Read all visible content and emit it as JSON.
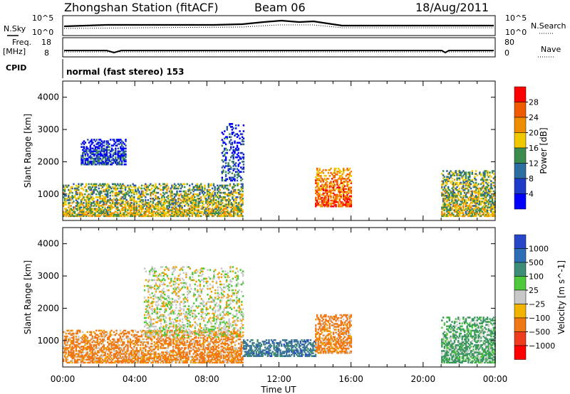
{
  "header": {
    "station": "Zhongshan Station (fitACF)",
    "beam": "Beam 06",
    "date": "18/Aug/2011"
  },
  "sky_panel": {
    "left_label": "N.Sky",
    "right_label": "N.Search",
    "left_ticks": [
      "10^5",
      "10^0"
    ],
    "right_ticks": [
      "10^5",
      "10^0"
    ]
  },
  "freq_panel": {
    "left_label_line1": "Freq.",
    "left_label_line2": "[MHz]",
    "right_label": "Nave",
    "left_ticks": [
      "18",
      "8"
    ],
    "right_ticks": [
      "80",
      "0"
    ]
  },
  "cpid_label": "CPID",
  "mode_text": "normal (fast stereo) 153",
  "chart_data": [
    {
      "type": "heatmap",
      "title": "Power",
      "ylabel": "Slant Range [km]",
      "xlabel": "Time UT",
      "ylim": [
        180,
        4500
      ],
      "y_ticks": [
        "4000",
        "3000",
        "2000",
        "1000"
      ],
      "x_ticks": [
        "00:00",
        "04:00",
        "08:00",
        "12:00",
        "16:00",
        "20:00",
        "00:00"
      ],
      "colorbar": {
        "label": "Power [dB]",
        "ticks": [
          "28",
          "24",
          "20",
          "16",
          "12",
          "8",
          "4"
        ],
        "colors": [
          "#ff0000",
          "#f05a00",
          "#f08c00",
          "#f0c800",
          "#3c8c50",
          "#2d5aa0",
          "#0000ff"
        ]
      },
      "regions": [
        {
          "t": [
            0.0,
            10.0
          ],
          "range_km": [
            300,
            1300
          ],
          "dominant_db": 16
        },
        {
          "t": [
            1.0,
            3.5
          ],
          "range_km": [
            1900,
            2700
          ],
          "dominant_db": 8
        },
        {
          "t": [
            8.8,
            10.0
          ],
          "range_km": [
            1400,
            3200
          ],
          "dominant_db": 8
        },
        {
          "t": [
            14.0,
            16.0
          ],
          "range_km": [
            600,
            1800
          ],
          "dominant_db": 24
        },
        {
          "t": [
            21.0,
            24.0
          ],
          "range_km": [
            300,
            1700
          ],
          "dominant_db": 16
        }
      ]
    },
    {
      "type": "heatmap",
      "title": "Velocity",
      "ylabel": "Slant Range [km]",
      "xlabel": "Time UT",
      "ylim": [
        180,
        4500
      ],
      "y_ticks": [
        "4000",
        "3000",
        "2000",
        "1000"
      ],
      "x_ticks": [
        "00:00",
        "04:00",
        "08:00",
        "12:00",
        "16:00",
        "20:00",
        "00:00"
      ],
      "colorbar": {
        "label": "Velocity [m s^-1]",
        "ticks": [
          "1000",
          "500",
          "100",
          "25",
          "−25",
          "−100",
          "−500",
          "−1000"
        ],
        "colors": [
          "#2846c8",
          "#3c7896",
          "#3c9660",
          "#50c83c",
          "#c8c8c8",
          "#f0a000",
          "#f07814",
          "#ff0000"
        ]
      },
      "regions": [
        {
          "t": [
            0.0,
            10.0
          ],
          "range_km": [
            300,
            1300
          ],
          "dominant_ms": -100
        },
        {
          "t": [
            4.5,
            10.0
          ],
          "range_km": [
            1100,
            3300
          ],
          "dominant_ms": 0
        },
        {
          "t": [
            10.0,
            14.0
          ],
          "range_km": [
            500,
            1000
          ],
          "dominant_ms": 500
        },
        {
          "t": [
            14.0,
            16.0
          ],
          "range_km": [
            600,
            1800
          ],
          "dominant_ms": -100
        },
        {
          "t": [
            21.0,
            24.0
          ],
          "range_km": [
            300,
            1700
          ],
          "dominant_ms": 100
        }
      ]
    }
  ]
}
